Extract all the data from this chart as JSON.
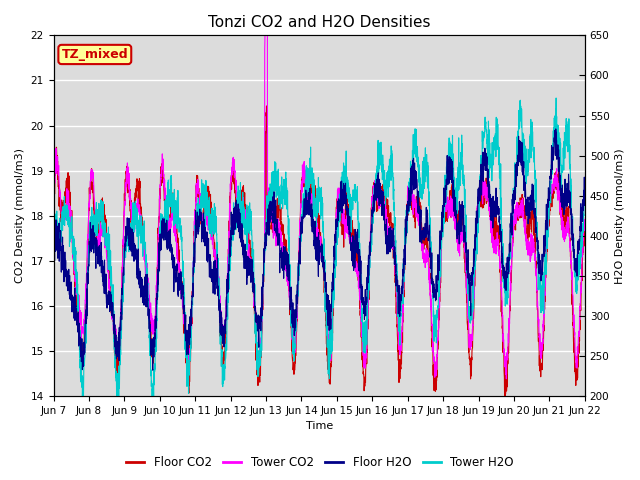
{
  "title": "Tonzi CO2 and H2O Densities",
  "xlabel": "Time",
  "ylabel_left": "CO2 Density (mmol/m3)",
  "ylabel_right": "H2O Density (mmol/m3)",
  "ylim_left": [
    14.0,
    22.0
  ],
  "ylim_right": [
    200,
    650
  ],
  "yticks_left": [
    14.0,
    15.0,
    16.0,
    17.0,
    18.0,
    19.0,
    20.0,
    21.0,
    22.0
  ],
  "yticks_right": [
    200,
    250,
    300,
    350,
    400,
    450,
    500,
    550,
    600,
    650
  ],
  "xtick_labels": [
    "Jun 7",
    "Jun 8",
    "Jun 9",
    "Jun 10",
    "Jun 11",
    "Jun 12",
    "Jun 13",
    "Jun 14",
    "Jun 15",
    "Jun 16",
    "Jun 17",
    "Jun 18",
    "Jun 19",
    "Jun 20",
    "Jun 21",
    "Jun 22"
  ],
  "n_days": 15,
  "n_points": 3000,
  "color_floor_co2": "#cc0000",
  "color_tower_co2": "#ff00ff",
  "color_floor_h2o": "#000088",
  "color_tower_h2o": "#00cccc",
  "bg_color": "#dcdcdc",
  "label_bg": "#ffff99",
  "label_border": "#cc0000",
  "label_text": "TZ_mixed",
  "label_text_color": "#cc0000",
  "legend_labels": [
    "Floor CO2",
    "Tower CO2",
    "Floor H2O",
    "Tower H2O"
  ],
  "linewidth_co2": 0.8,
  "linewidth_h2o": 0.8,
  "title_fontsize": 11,
  "axis_fontsize": 8,
  "tick_fontsize": 7.5
}
